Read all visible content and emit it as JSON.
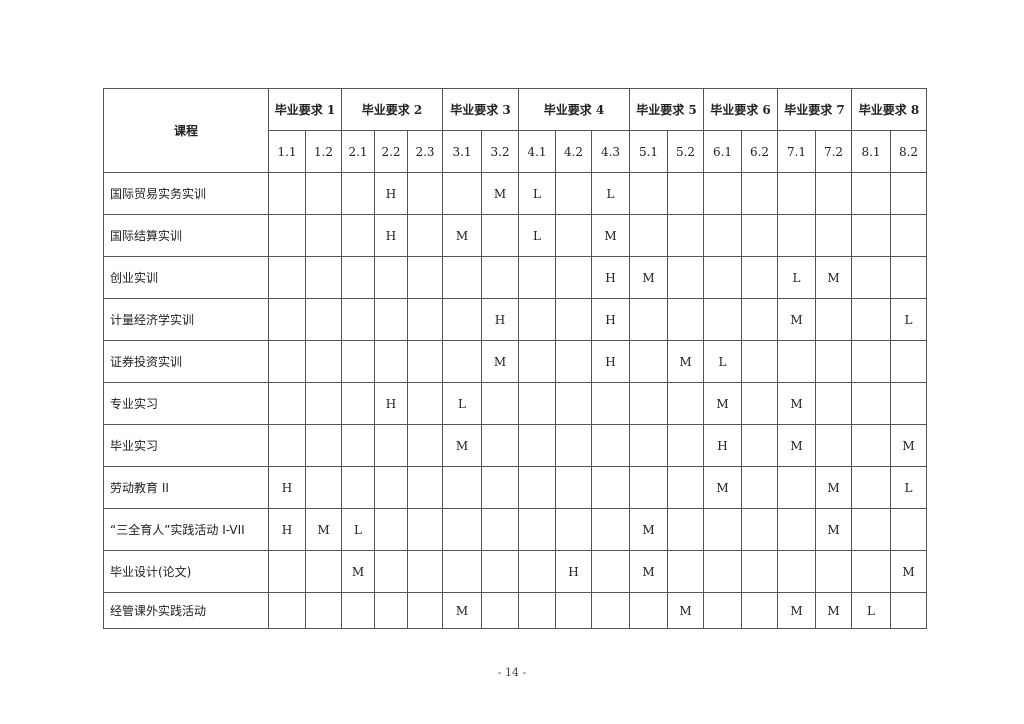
{
  "table": {
    "course_header": "课程",
    "groups": [
      {
        "label": "毕业要求 1",
        "span": 2
      },
      {
        "label": "毕业要求 2",
        "span": 3
      },
      {
        "label": "毕业要求 3",
        "span": 2
      },
      {
        "label": "毕业要求 4",
        "span": 3
      },
      {
        "label": "毕业要求 5",
        "span": 2
      },
      {
        "label": "毕业要求 6",
        "span": 2
      },
      {
        "label": "毕业要求 7",
        "span": 2
      },
      {
        "label": "毕业要求 8",
        "span": 2
      }
    ],
    "sub_headers": [
      "1.1",
      "1.2",
      "2.1",
      "2.2",
      "2.3",
      "3.1",
      "3.2",
      "4.1",
      "4.2",
      "4.3",
      "5.1",
      "5.2",
      "6.1",
      "6.2",
      "7.1",
      "7.2",
      "8.1",
      "8.2"
    ],
    "rows": [
      {
        "course": "国际贸易实务实训",
        "cells": [
          "",
          "",
          "",
          "H",
          "",
          "",
          "M",
          "L",
          "",
          "L",
          "",
          "",
          "",
          "",
          "",
          "",
          "",
          ""
        ]
      },
      {
        "course": "国际结算实训",
        "cells": [
          "",
          "",
          "",
          "H",
          "",
          "M",
          "",
          "L",
          "",
          "M",
          "",
          "",
          "",
          "",
          "",
          "",
          "",
          ""
        ]
      },
      {
        "course": "创业实训",
        "cells": [
          "",
          "",
          "",
          "",
          "",
          "",
          "",
          "",
          "",
          "H",
          "M",
          "",
          "",
          "",
          "L",
          "M",
          "",
          ""
        ]
      },
      {
        "course": "计量经济学实训",
        "cells": [
          "",
          "",
          "",
          "",
          "",
          "",
          "H",
          "",
          "",
          "H",
          "",
          "",
          "",
          "",
          "M",
          "",
          "",
          "L"
        ]
      },
      {
        "course": "证券投资实训",
        "cells": [
          "",
          "",
          "",
          "",
          "",
          "",
          "M",
          "",
          "",
          "H",
          "",
          "M",
          "L",
          "",
          "",
          "",
          "",
          ""
        ]
      },
      {
        "course": "专业实习",
        "cells": [
          "",
          "",
          "",
          "H",
          "",
          "L",
          "",
          "",
          "",
          "",
          "",
          "",
          "M",
          "",
          "M",
          "",
          "",
          ""
        ]
      },
      {
        "course": "毕业实习",
        "cells": [
          "",
          "",
          "",
          "",
          "",
          "M",
          "",
          "",
          "",
          "",
          "",
          "",
          "H",
          "",
          "M",
          "",
          "",
          "M"
        ]
      },
      {
        "course": "劳动教育 II",
        "cells": [
          "H",
          "",
          "",
          "",
          "",
          "",
          "",
          "",
          "",
          "",
          "",
          "",
          "M",
          "",
          "",
          "M",
          "",
          "L"
        ]
      },
      {
        "course": "“三全育人”实践活动 I-VII",
        "cells": [
          "H",
          "M",
          "L",
          "",
          "",
          "",
          "",
          "",
          "",
          "",
          "M",
          "",
          "",
          "",
          "",
          "M",
          "",
          ""
        ]
      },
      {
        "course": "毕业设计(论文)",
        "cells": [
          "",
          "",
          "M",
          "",
          "",
          "",
          "",
          "",
          "H",
          "",
          "M",
          "",
          "",
          "",
          "",
          "",
          "",
          "M"
        ]
      },
      {
        "course": "经管课外实践活动",
        "cells": [
          "",
          "",
          "",
          "",
          "",
          "M",
          "",
          "",
          "",
          "",
          "",
          "M",
          "",
          "",
          "M",
          "M",
          "L",
          ""
        ]
      }
    ]
  },
  "page_number": "- 14 -"
}
